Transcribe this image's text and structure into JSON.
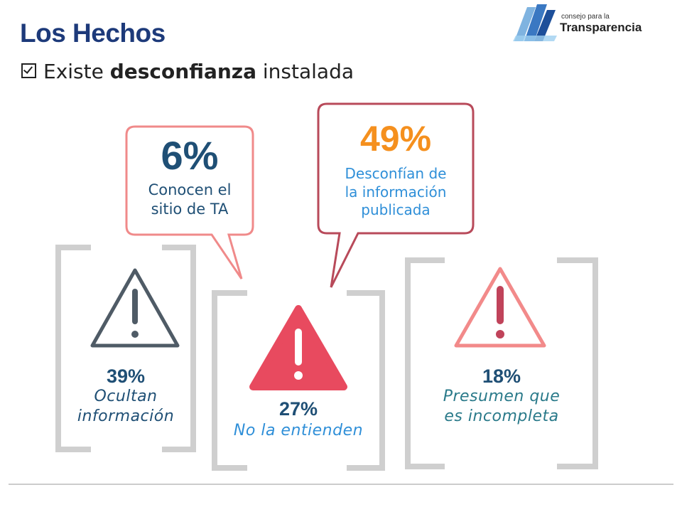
{
  "header": {
    "title": "Los Hechos",
    "subtitle_pre": "Existe ",
    "subtitle_bold": "desconfianza",
    "subtitle_post": " instalada"
  },
  "logo": {
    "small_text": "consejo para la",
    "big_text": "Transparencia"
  },
  "bubbles": [
    {
      "value": "6%",
      "line1": "Conocen el",
      "line2": "sitio de TA"
    },
    {
      "value": "49%",
      "line1": "Desconfían de",
      "line2": "la información",
      "line3": "publicada"
    }
  ],
  "panels": [
    {
      "value": "39%",
      "line1": "Ocultan",
      "line2": "información"
    },
    {
      "value": "27%",
      "line1": "No la entienden"
    },
    {
      "value": "18%",
      "line1": "Presumen que",
      "line2": "es incompleta"
    }
  ],
  "colors": {
    "title": "#1d3a7a",
    "dark_blue": "#1f4f75",
    "orange": "#f5901e",
    "light_blue": "#2f8fd8",
    "teal": "#2a7a8a",
    "bubble_pink": "#f08a8a",
    "bubble_red": "#b84a5a",
    "bracket_gray": "#cfcfcf",
    "warn_red": "#e84a5f"
  },
  "icons": [
    "checkbox-icon",
    "warning-outline-dark-icon",
    "warning-filled-red-icon",
    "warning-outline-red-icon"
  ]
}
